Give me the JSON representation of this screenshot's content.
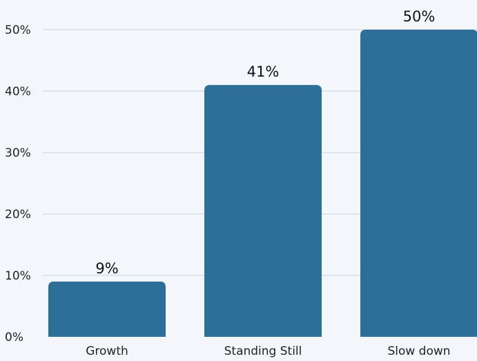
{
  "chart_data": {
    "type": "bar",
    "title": "",
    "xlabel": "",
    "ylabel": "",
    "categories": [
      "Growth",
      "Standing Still",
      "Slow down"
    ],
    "values": [
      9,
      41,
      50
    ],
    "value_labels": [
      "9%",
      "41%",
      "50%"
    ],
    "ylim": [
      0,
      50
    ],
    "y_ticks": [
      0,
      10,
      20,
      30,
      40,
      50
    ],
    "y_tick_labels": [
      "0%",
      "10%",
      "20%",
      "30%",
      "40%",
      "50%"
    ],
    "grid": true,
    "legend": "none",
    "bar_color": "#2e6f98",
    "background_color": "#f3f6fb"
  }
}
